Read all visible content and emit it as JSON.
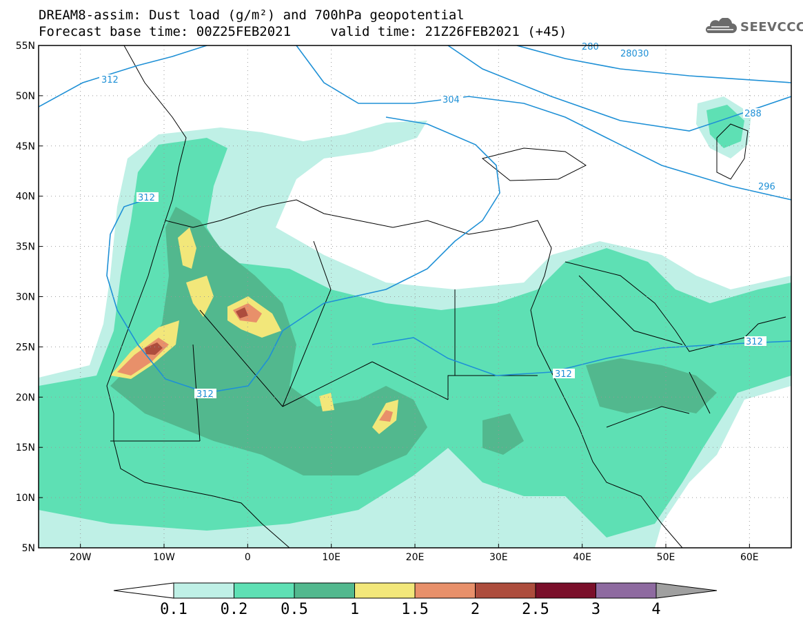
{
  "title_line1": "DREAM8-assim: Dust load (g/m²) and 700hPa geopotential",
  "title_line2": "Forecast base time: 00Z25FEB2021     valid time: 21Z26FEB2021 (+45)",
  "logo_text": "SEEVCCC",
  "map": {
    "lon_range": [
      -25,
      65
    ],
    "lat_range": [
      5,
      55
    ],
    "lon_ticks": [
      {
        "lon": -20,
        "label": "20W"
      },
      {
        "lon": -10,
        "label": "10W"
      },
      {
        "lon": 0,
        "label": "0"
      },
      {
        "lon": 10,
        "label": "10E"
      },
      {
        "lon": 20,
        "label": "20E"
      },
      {
        "lon": 30,
        "label": "30E"
      },
      {
        "lon": 40,
        "label": "40E"
      },
      {
        "lon": 50,
        "label": "50E"
      },
      {
        "lon": 60,
        "label": "60E"
      }
    ],
    "lat_ticks": [
      {
        "lat": 55,
        "label": "55N"
      },
      {
        "lat": 50,
        "label": "50N"
      },
      {
        "lat": 45,
        "label": "45N"
      },
      {
        "lat": 40,
        "label": "40N"
      },
      {
        "lat": 35,
        "label": "35N"
      },
      {
        "lat": 30,
        "label": "30N"
      },
      {
        "lat": 25,
        "label": "25N"
      },
      {
        "lat": 20,
        "label": "20N"
      },
      {
        "lat": 15,
        "label": "15N"
      },
      {
        "lat": 10,
        "label": "10N"
      },
      {
        "lat": 5,
        "label": "5N"
      }
    ],
    "contour_labels": [
      "312",
      "312",
      "312",
      "312",
      "304",
      "288",
      "296",
      "28030",
      "280"
    ]
  },
  "colorbar": {
    "levels": [
      "0.1",
      "0.2",
      "0.5",
      "1",
      "1.5",
      "2",
      "2.5",
      "3",
      "4"
    ],
    "colors": [
      "#ffffff",
      "#bff0e6",
      "#5ee0b4",
      "#52b88e",
      "#f2e77a",
      "#e8906a",
      "#ad4d3d",
      "#7a0f2a",
      "#8e6aa0",
      "#a0a0a0"
    ]
  }
}
